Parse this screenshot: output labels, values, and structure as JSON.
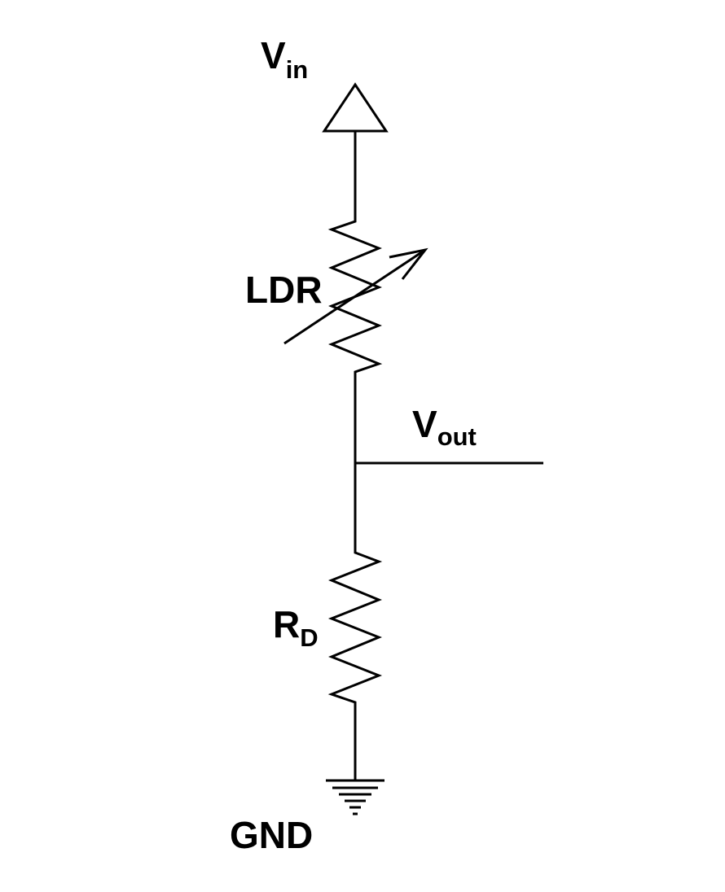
{
  "labels": {
    "vin": {
      "main": "V",
      "sub": "in"
    },
    "ldr": "LDR",
    "vout": {
      "main": "V",
      "sub": "out"
    },
    "rd": {
      "main": "R",
      "sub": "D"
    },
    "gnd": "GND"
  }
}
